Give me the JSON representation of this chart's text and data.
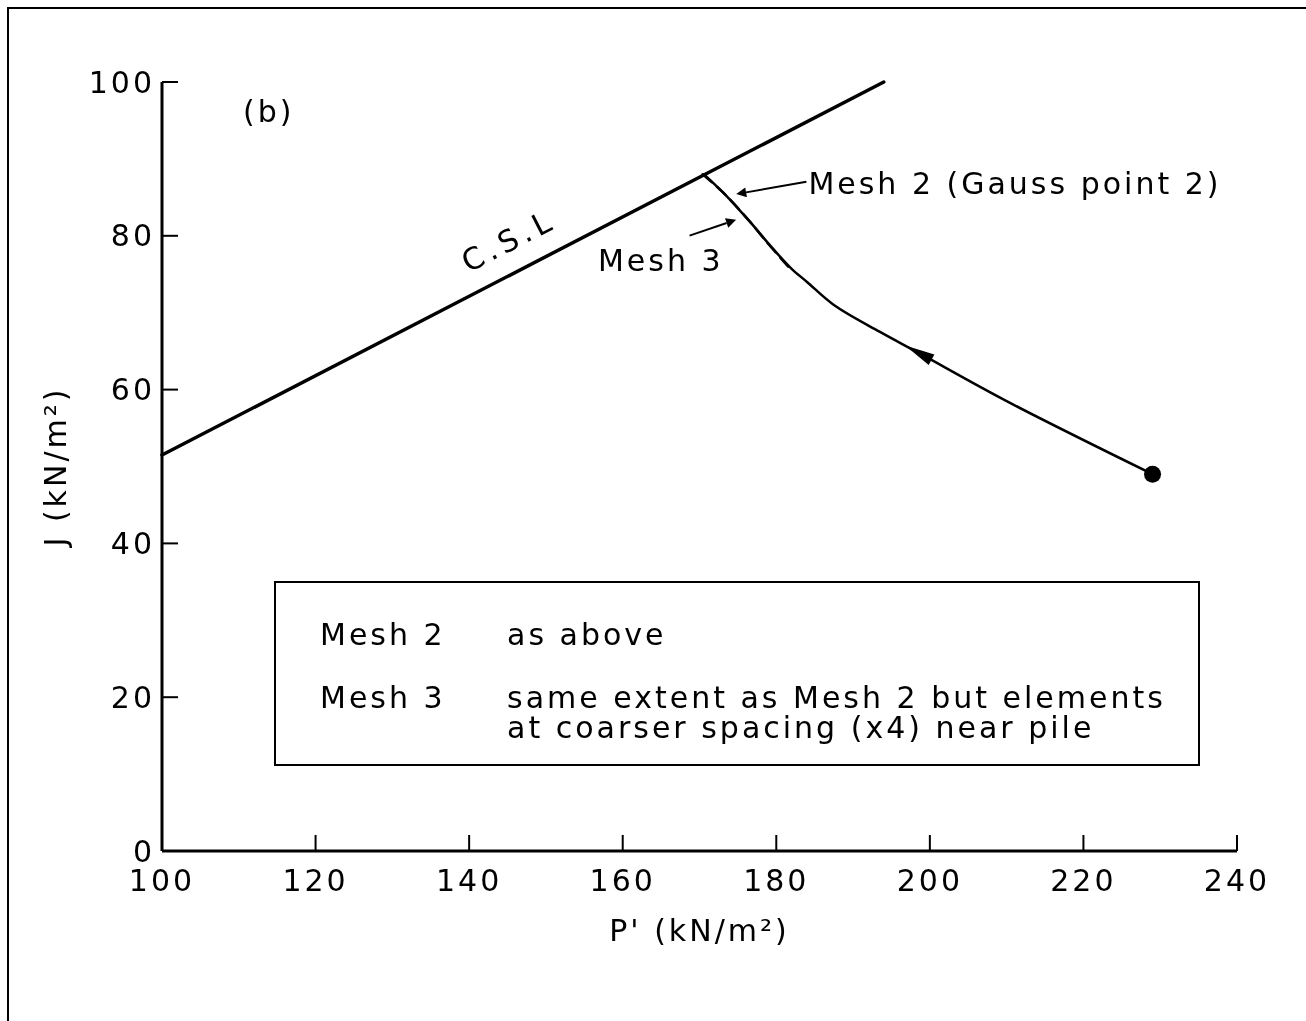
{
  "chart_data": {
    "type": "line",
    "xlabel": "P' (kN/m²)",
    "ylabel": "J (kN/m²)",
    "annotations": [
      "(b)",
      "Mesh 2",
      "as above",
      "Mesh 3",
      "same extent as Mesh 2 but elements at coarser spacing (x4) near pile"
    ],
    "xlim": [
      100,
      240
    ],
    "xticks": [
      100,
      120,
      140,
      160,
      180,
      200,
      220,
      240
    ],
    "ylim": [
      0,
      100
    ],
    "yticks": [
      0,
      20,
      40,
      60,
      80,
      100
    ],
    "series": [
      {
        "name": "C.S.L",
        "color": "#000000",
        "x": [
          100,
          194
        ],
        "values": [
          51.5,
          100
        ]
      },
      {
        "name": "Mesh 2 (Gauss point 2)",
        "color": "#000000",
        "x": [
          229,
          210,
          198.5,
          193.5,
          187.5,
          184,
          182,
          179.5,
          176.5,
          173.5,
          170.7
        ],
        "values": [
          49,
          58.5,
          64.8,
          67.5,
          71,
          74,
          75.7,
          78.4,
          81.9,
          85.2,
          87.9
        ]
      },
      {
        "name": "Mesh 3",
        "color": "#000000",
        "line_style": "dashed",
        "x": [
          170.4,
          173,
          176,
          179,
          182
        ],
        "values": [
          88,
          85.7,
          82.5,
          78.9,
          75.5
        ]
      },
      {
        "type": "scatter",
        "color": "#000000",
        "marker": "circle",
        "x": [
          229
        ],
        "values": [
          49
        ]
      }
    ]
  }
}
